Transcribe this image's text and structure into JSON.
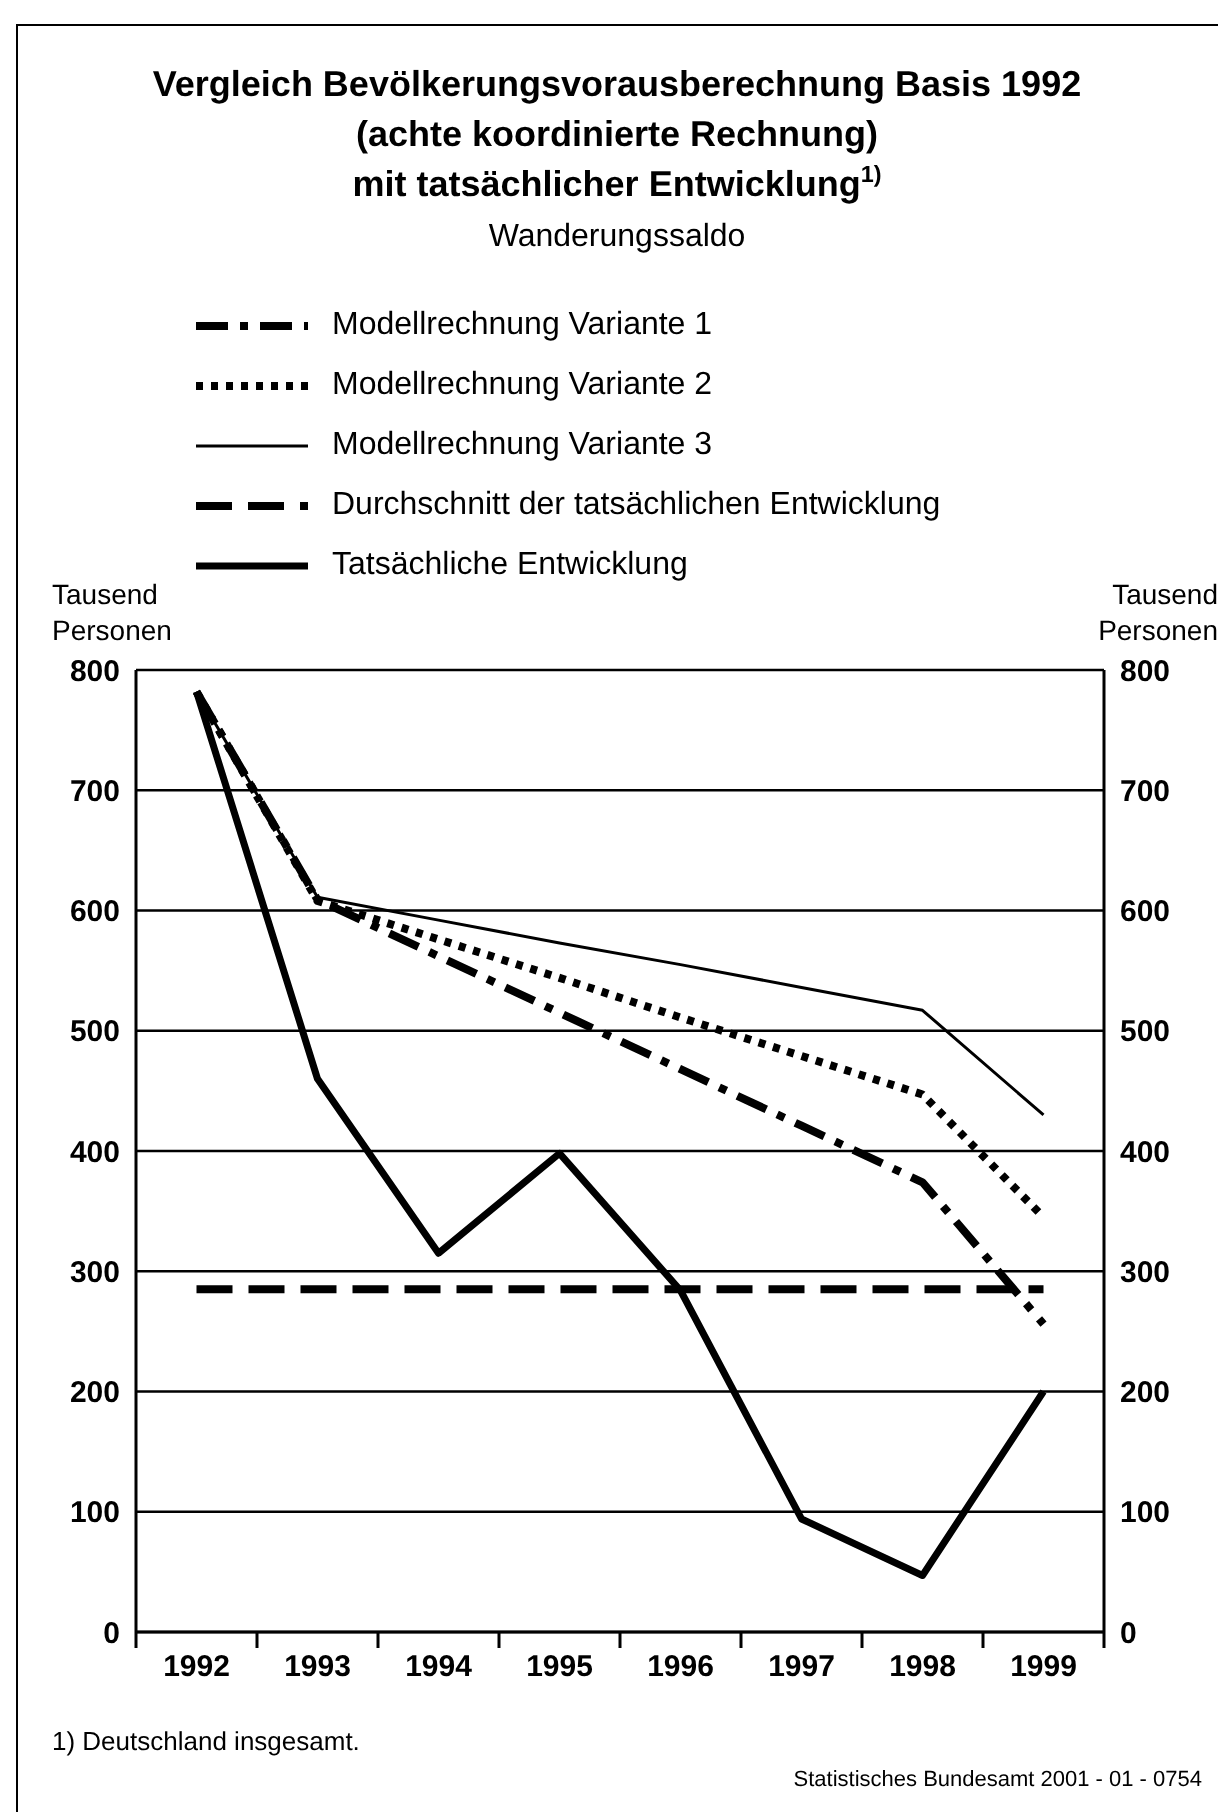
{
  "chart_data": {
    "type": "line",
    "title": "Vergleich Bevölkerungsvorausberechnung Basis 1992\n(achte koordinierte Rechnung)\nmit tatsächlicher Entwicklung$^{1)}$",
    "subtitle": "Wanderungssaldo",
    "ylabel": "Tausend\nPersonen",
    "y2label": "Tausend\nPersonen",
    "categories": [
      "1992",
      "1993",
      "1994",
      "1995",
      "1996",
      "1997",
      "1998",
      "1999"
    ],
    "series": [
      {
        "name": "Modellrechnung Variante 1",
        "color": "#000000",
        "line_style": "dashdot",
        "values": [
          782,
          609,
          562,
          515,
          468,
          421,
          374,
          256
        ]
      },
      {
        "name": "Modellrechnung Variante 2",
        "color": "#000000",
        "line_style": "dotted",
        "values": [
          782,
          608,
          576,
          544,
          511,
          479,
          447,
          345
        ]
      },
      {
        "name": "Modellrechnung Variante 3",
        "color": "#000000",
        "line_style": "solid",
        "values": [
          782,
          611,
          592,
          573,
          555,
          536,
          517,
          430
        ]
      },
      {
        "name": "Durchschnitt der tatsächlichen Entwicklung",
        "color": "#000000",
        "line_style": "dashed",
        "values": [
          285,
          285,
          285,
          285,
          285,
          285,
          285,
          285
        ]
      },
      {
        "name": "Tatsächliche Entwicklung",
        "color": "#000000",
        "line_style": "solid",
        "values": [
          782,
          460,
          315,
          398,
          284,
          94,
          47,
          200
        ]
      }
    ],
    "ylim": [
      0,
      800
    ],
    "yticks": [
      0,
      100,
      200,
      300,
      400,
      500,
      600,
      700,
      800
    ],
    "y2lim": [
      0,
      800
    ],
    "y2ticks": [
      0,
      100,
      200,
      300,
      400,
      500,
      600,
      700,
      800
    ],
    "grid": "y",
    "legend": "top",
    "marker": "none",
    "annotations": [
      "1) Deutschland insgesamt.",
      "Statistisches Bundesamt 2001 - 01 - 0754"
    ]
  }
}
